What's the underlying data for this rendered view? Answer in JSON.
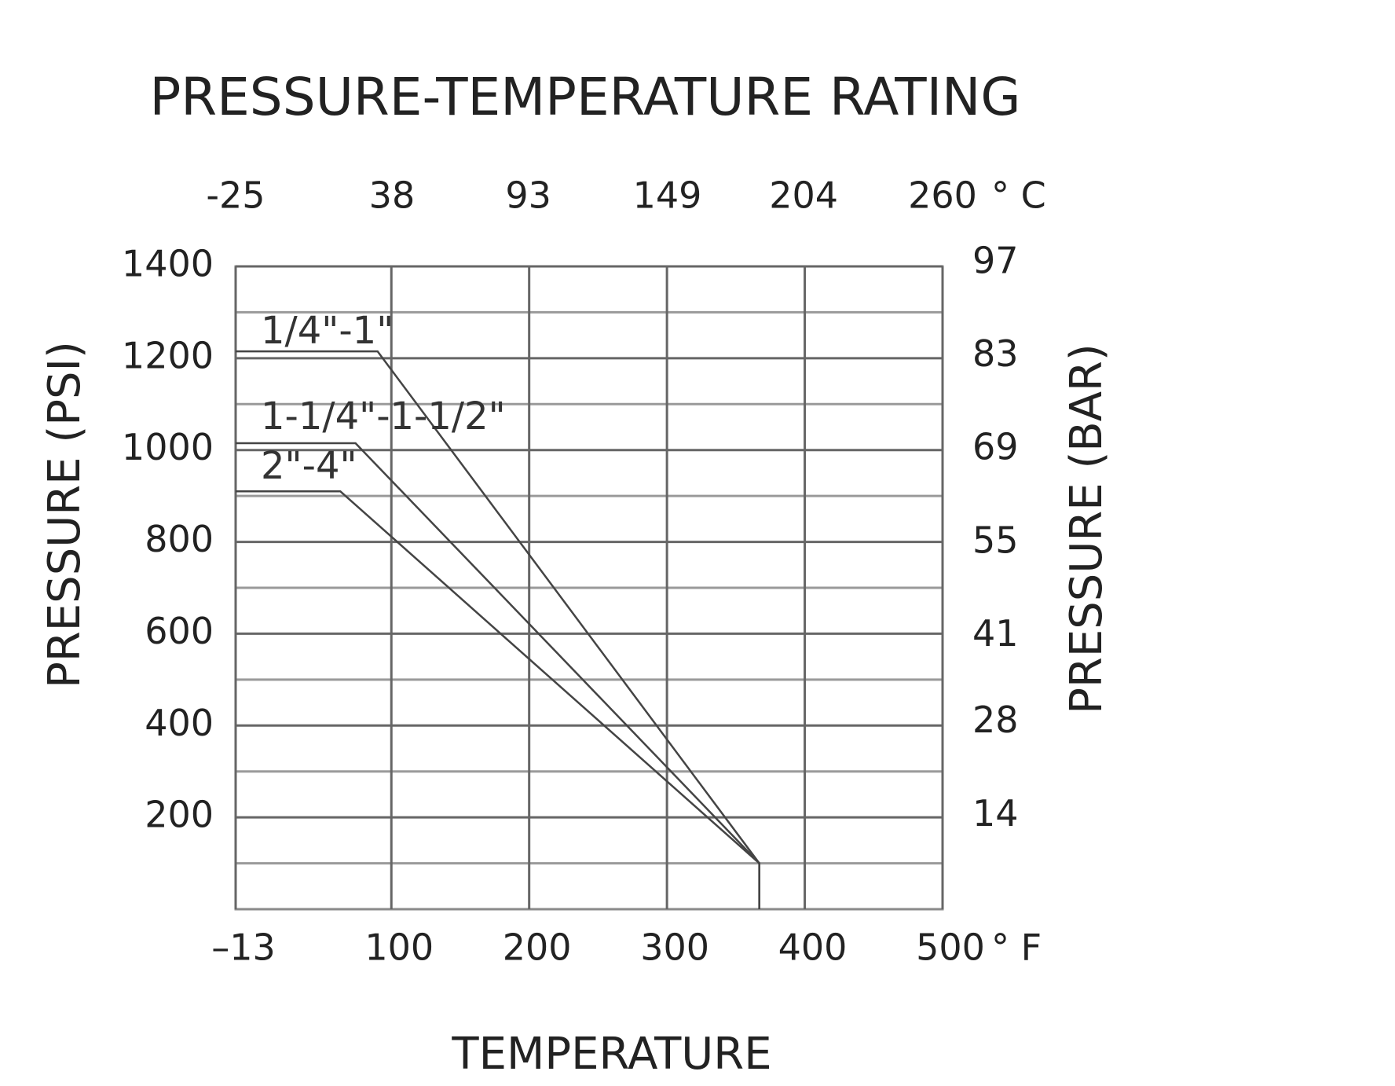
{
  "chart_data": {
    "type": "line",
    "title": "PRESSURE-TEMPERATURE RATING",
    "x_label": "TEMPERATURE",
    "y_label": "PRESSURE (PSI)",
    "y2_label": "PRESSURE (BAR)",
    "x_unit": "° F",
    "x2_unit": "° C",
    "xlim": [
      -13,
      500
    ],
    "xticks": [
      {
        "value": -13,
        "label": "–13"
      },
      100,
      200,
      300,
      400,
      500
    ],
    "x2lim": [
      -25,
      260
    ],
    "x2ticks": [
      -25,
      38,
      93,
      149,
      204,
      260
    ],
    "ylim": [
      0,
      1400
    ],
    "yticks": [
      200,
      400,
      600,
      800,
      1000,
      1200,
      1400
    ],
    "y_minor_ticks": [
      100,
      300,
      500,
      700,
      900,
      1100,
      1300
    ],
    "y2lim": [
      0,
      96.5
    ],
    "y2ticks": [
      14,
      28,
      41,
      55,
      69,
      83,
      97
    ],
    "grid": true,
    "series": [
      {
        "name": "1/4\"-1\"",
        "color": "#444444",
        "x": [
          -13,
          90,
          367,
          367
        ],
        "values": [
          1215,
          1215,
          100,
          0
        ]
      },
      {
        "name": "1-1/4\"-1-1/2\"",
        "color": "#444444",
        "x": [
          -13,
          74,
          367,
          367
        ],
        "values": [
          1015,
          1015,
          100,
          0
        ]
      },
      {
        "name": "2\"-4\"",
        "color": "#444444",
        "x": [
          -13,
          63,
          367,
          367
        ],
        "values": [
          910,
          910,
          100,
          0
        ]
      }
    ]
  }
}
